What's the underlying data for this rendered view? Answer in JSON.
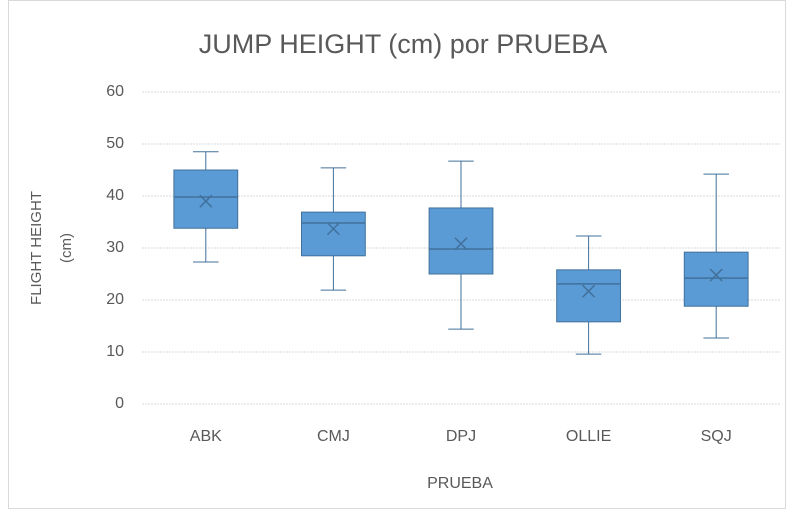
{
  "chart_data": {
    "type": "box",
    "title": "JUMP HEIGHT (cm) por PRUEBA",
    "x_label": "PRUEBA",
    "y_label": [
      "FLIGHT HEIGHT",
      "(cm)"
    ],
    "categories": [
      "ABK",
      "CMJ",
      "DPJ",
      "OLLIE",
      "SQJ"
    ],
    "min": [
      27.3,
      21.9,
      14.4,
      9.6,
      12.7
    ],
    "q1": [
      33.8,
      28.5,
      25,
      15.8,
      18.8
    ],
    "median": [
      39.8,
      34.8,
      29.8,
      23.1,
      24.2
    ],
    "q3": [
      45,
      36.9,
      37.7,
      25.8,
      29.2
    ],
    "max": [
      48.5,
      45.4,
      46.7,
      32.3,
      44.2
    ],
    "mean": [
      39,
      33.7,
      30.8,
      21.7,
      24.8
    ],
    "color": "#5b9bd5",
    "ylim": [
      0,
      60
    ],
    "yticks": [
      0,
      10,
      20,
      30,
      40,
      50,
      60
    ],
    "grid": true
  }
}
